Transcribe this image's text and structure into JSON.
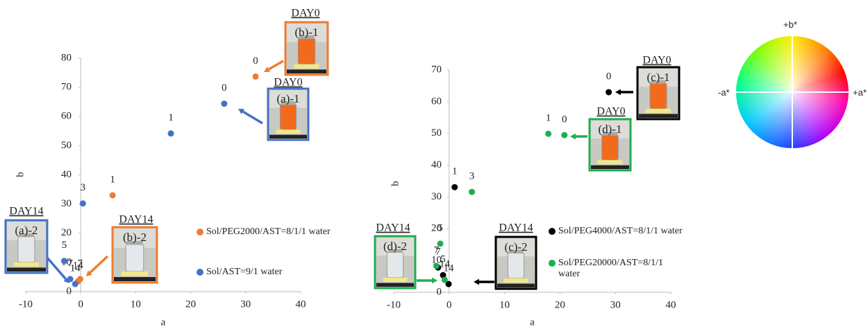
{
  "chart_data": [
    {
      "type": "scatter",
      "xlabel": "a",
      "ylabel": "b",
      "xlim": [
        -10,
        40
      ],
      "xticks": [
        -10,
        0,
        10,
        20,
        30,
        40
      ],
      "ylim": [
        0,
        80
      ],
      "yticks": [
        0,
        10,
        20,
        30,
        40,
        50,
        60,
        70,
        80
      ],
      "series": [
        {
          "name": "Sol/PEG2000/AST=8/1/1 water",
          "color": "#ed7d31",
          "x": [
            31.8,
            5.8,
            -0.1,
            -0.5
          ],
          "values": [
            73.7,
            33,
            4.3,
            3.5
          ],
          "point_labels": [
            "0",
            "1",
            "7",
            "14"
          ]
        },
        {
          "name": "Sol/AST=9/1 water",
          "color": "#4472c4",
          "x": [
            26.1,
            16.4,
            0.4,
            -3,
            -1.9,
            -1
          ],
          "values": [
            64.4,
            54.2,
            30.2,
            10.5,
            4.3,
            2.6
          ],
          "point_labels": [
            "0",
            "1",
            "3",
            "5",
            "7",
            "14"
          ]
        }
      ],
      "annotations": [
        {
          "day": "DAY0",
          "label": "(b)-1"
        },
        {
          "day": "DAY0",
          "label": "(a)-1"
        },
        {
          "day": "DAY14",
          "label": "(a)-2"
        },
        {
          "day": "DAY14",
          "label": "(b)-2"
        }
      ]
    },
    {
      "type": "scatter",
      "xlabel": "a",
      "ylabel": "b",
      "xlim": [
        -10,
        40
      ],
      "xticks": [
        -10,
        0,
        10,
        20,
        30,
        40
      ],
      "ylim": [
        0,
        70
      ],
      "yticks": [
        0,
        10,
        20,
        30,
        40,
        50,
        60,
        70
      ],
      "series": [
        {
          "name": "Sol/PEG4000/AST=8/1/1 water",
          "color": "#000000",
          "x": [
            28.8,
            1,
            -1.1,
            -2,
            -0.1
          ],
          "values": [
            63,
            33.1,
            5.4,
            7.8,
            2.6
          ],
          "point_labels": [
            "0",
            "1",
            "5",
            "7",
            "14"
          ]
        },
        {
          "name": "Sol/PEG20000/AST=8/1/1 water",
          "color": "#1fae4f",
          "x": [
            20.8,
            17.9,
            4.1,
            -1.6,
            -2.3,
            -0.8
          ],
          "values": [
            49.5,
            49.9,
            31.6,
            15.3,
            8.3,
            3.9
          ],
          "point_labels": [
            "0",
            "1",
            "3",
            "5",
            "7",
            "14"
          ]
        }
      ],
      "annotations": [
        {
          "day": "DAY0",
          "label": "(c)-1"
        },
        {
          "day": "DAY0",
          "label": "(d)-1"
        },
        {
          "day": "DAY14",
          "label": "(d)-2"
        },
        {
          "day": "DAY14",
          "label": "(c)-2"
        }
      ]
    }
  ],
  "color_wheel": {
    "top": "+b*",
    "left": "-a*",
    "right": "+a*"
  }
}
